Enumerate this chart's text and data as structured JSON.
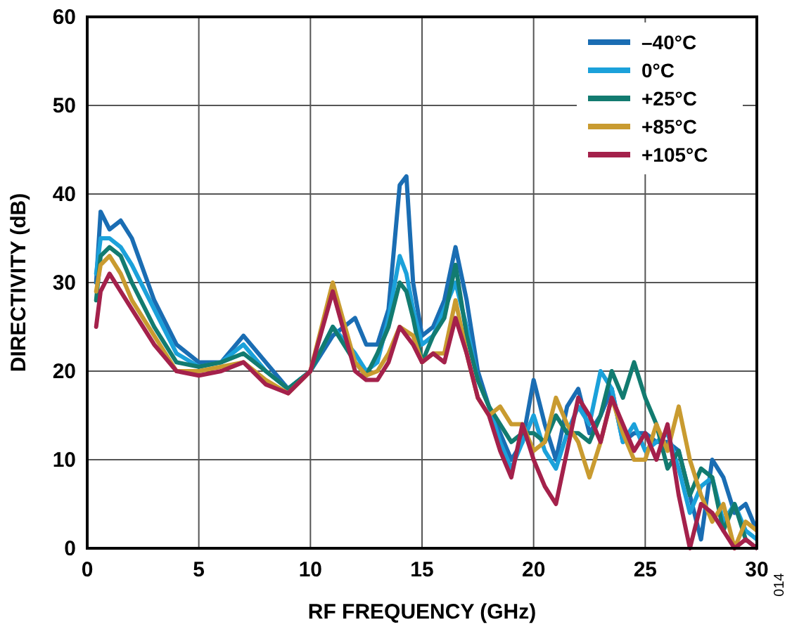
{
  "chart_data": {
    "type": "line",
    "xlabel": "RF FREQUENCY (GHz)",
    "ylabel": "DIRECTIVITY (dB)",
    "xlim": [
      0,
      30
    ],
    "ylim": [
      0,
      60
    ],
    "xticks": [
      0,
      5,
      10,
      15,
      20,
      25,
      30
    ],
    "yticks": [
      0,
      10,
      20,
      30,
      40,
      50,
      60
    ],
    "grid": true,
    "legend": "top right",
    "marker": "none",
    "line_style": "solid",
    "annotations": [
      "014"
    ],
    "x": [
      0.4,
      0.6,
      1,
      1.5,
      2,
      3,
      4,
      5,
      6,
      7,
      8,
      9,
      10,
      11,
      12,
      12.5,
      13,
      13.5,
      14,
      14.3,
      14.6,
      15,
      15.5,
      16,
      16.5,
      17,
      17.5,
      18,
      18.5,
      19,
      19.5,
      20,
      20.5,
      21,
      21.5,
      22,
      22.5,
      23,
      23.5,
      24,
      24.5,
      25,
      25.5,
      26,
      26.5,
      27,
      27.5,
      28,
      28.5,
      29,
      29.5,
      30
    ],
    "series": [
      {
        "name": "–40°C",
        "color": "#1a6db3",
        "values": [
          30,
          38,
          36,
          37,
          35,
          28,
          23,
          21,
          21,
          24,
          21,
          18,
          20,
          24,
          26,
          23,
          23,
          27,
          41,
          42,
          30,
          24,
          25,
          28,
          34,
          28,
          20,
          16,
          13,
          10,
          12,
          19,
          14,
          10,
          16,
          18,
          13,
          15,
          18,
          12,
          13,
          13,
          12,
          12,
          11,
          6,
          1,
          10,
          8,
          4,
          5,
          2
        ]
      },
      {
        "name": "0°C",
        "color": "#1ba1da",
        "values": [
          31,
          35,
          35,
          34,
          32,
          27,
          22,
          20.5,
          21,
          23,
          20,
          18,
          20,
          25,
          22,
          20,
          21,
          26,
          33,
          31,
          27,
          23,
          24,
          27,
          30,
          25,
          19,
          16,
          12,
          9,
          12,
          15,
          11,
          9,
          13,
          16,
          14,
          20,
          18,
          12,
          14,
          11,
          12,
          13,
          9,
          4,
          7,
          8,
          3,
          5,
          2,
          1
        ]
      },
      {
        "name": "+25°C",
        "color": "#127b70",
        "values": [
          28,
          33,
          34,
          33,
          30,
          25,
          21,
          20.5,
          21,
          22,
          20,
          18,
          20,
          25,
          21,
          19.5,
          22,
          25,
          30,
          29,
          26,
          21,
          24,
          26,
          32,
          24,
          19,
          16,
          14,
          12,
          13,
          13,
          12,
          15,
          13,
          13,
          12,
          15,
          20,
          17,
          21,
          17,
          14,
          9,
          11,
          6,
          9,
          8,
          2,
          5,
          1,
          0
        ]
      },
      {
        "name": "+85°C",
        "color": "#c99b30",
        "values": [
          29,
          32,
          33,
          31,
          28,
          24,
          20,
          20,
          20.5,
          21,
          19,
          17.5,
          20,
          30,
          21,
          19.5,
          20,
          22,
          25,
          24.5,
          24,
          21,
          22,
          22,
          28,
          22,
          17,
          15,
          16,
          14,
          14,
          11,
          12,
          17,
          14,
          12,
          8,
          12,
          17,
          13,
          10,
          10,
          14,
          11,
          16,
          10,
          6,
          3,
          5,
          0,
          3,
          2
        ]
      },
      {
        "name": "+105°C",
        "color": "#a4214b",
        "values": [
          25,
          29,
          31,
          29,
          27,
          23,
          20,
          19.5,
          20,
          21,
          18.5,
          17.5,
          20,
          29,
          20,
          19,
          19,
          21,
          25,
          24,
          23,
          21,
          22,
          21,
          26,
          22,
          17,
          15,
          11,
          8,
          14,
          10,
          7,
          5,
          11,
          17,
          15,
          12,
          17,
          14,
          11,
          13,
          10,
          14,
          6,
          0,
          5,
          4,
          2,
          0,
          1,
          0
        ]
      }
    ]
  }
}
